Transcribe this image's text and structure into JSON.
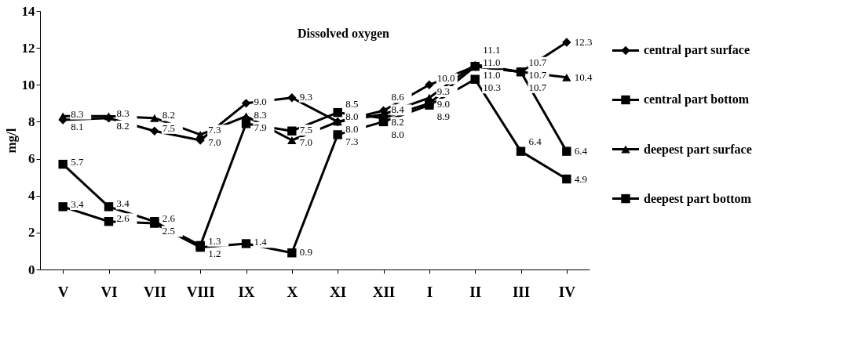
{
  "chart_data": {
    "type": "line",
    "title": "Dissolved oxygen",
    "ylabel": "mg/l",
    "categories": [
      "V",
      "VI",
      "VII",
      "VIII",
      "IX",
      "X",
      "XI",
      "XII",
      "I",
      "II",
      "III",
      "IV"
    ],
    "series": [
      {
        "name": "central part surface",
        "color": "#000000",
        "marker": "diamond",
        "values": [
          8.1,
          8.2,
          7.5,
          7.0,
          9.0,
          9.3,
          8.0,
          8.6,
          10.0,
          11.0,
          10.7,
          12.3
        ],
        "value_labels": [
          "8.1",
          "8.2",
          "7.5",
          "7.0",
          "9.0",
          "9.3",
          "8.0",
          "8.6",
          "10.0",
          "11.0",
          "10.7",
          "12.3"
        ]
      },
      {
        "name": "central part bottom",
        "color": "#000000",
        "marker": "square",
        "values": [
          5.7,
          3.4,
          2.6,
          1.3,
          7.9,
          7.5,
          8.5,
          8.2,
          9.0,
          11.0,
          10.7,
          6.4
        ],
        "value_labels": [
          "5.7",
          "3.4",
          "2.6",
          "1.3",
          "7.9",
          "7.5",
          "8.5",
          "8.2",
          "9.0",
          "11.0",
          "10.7",
          "6.4"
        ]
      },
      {
        "name": "deepest part surface",
        "color": "#000000",
        "marker": "triangle",
        "values": [
          8.3,
          8.3,
          8.2,
          7.3,
          8.3,
          7.0,
          8.0,
          8.4,
          9.3,
          11.1,
          10.7,
          10.4
        ],
        "value_labels": [
          "8.3",
          "8.3",
          "8.2",
          "7.3",
          "8.3",
          "7.0",
          "8.0",
          "8.4",
          "9.3",
          "11.1",
          "10.7",
          "10.4"
        ]
      },
      {
        "name": "deepest part bottom",
        "color": "#000000",
        "marker": "square",
        "values": [
          3.4,
          2.6,
          2.5,
          1.2,
          1.4,
          0.9,
          7.3,
          8.0,
          8.9,
          10.3,
          6.4,
          4.9
        ],
        "value_labels": [
          "3.4",
          "2.6",
          "2.5",
          "1.2",
          "1.4",
          "0.9",
          "7.3",
          "8.0",
          "8.9",
          "10.3",
          "6.4",
          "4.9"
        ]
      }
    ],
    "ylim": [
      0,
      14
    ],
    "yticks": [
      0,
      2,
      4,
      6,
      8,
      10,
      12,
      14
    ],
    "grid": false,
    "legend": "right",
    "line_style": "solid"
  }
}
